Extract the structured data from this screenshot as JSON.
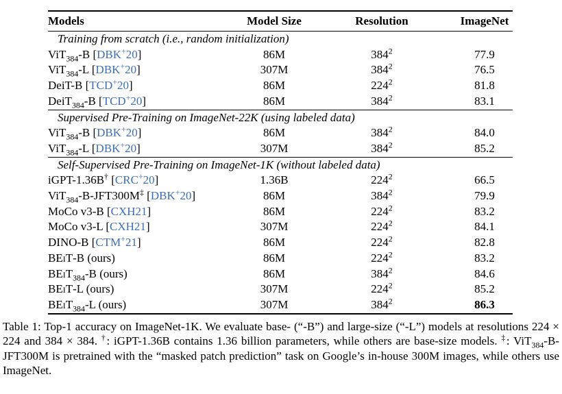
{
  "colors": {
    "text": "#000000",
    "rule": "#000000",
    "citation_link": "#3c6fb4"
  },
  "table": {
    "columns": [
      "Models",
      "Model Size",
      "Resolution",
      "ImageNet"
    ],
    "sections": [
      {
        "title": "Training from scratch (i.e., random initialization)",
        "rows": [
          {
            "model": "ViT_{384}-B",
            "cite": "DBK^{+}20",
            "size": "86M",
            "resolution": "384^{2}",
            "imagenet": "77.9",
            "bold": false
          },
          {
            "model": "ViT_{384}-L",
            "cite": "DBK^{+}20",
            "size": "307M",
            "resolution": "384^{2}",
            "imagenet": "76.5",
            "bold": false
          },
          {
            "model": "DeiT-B",
            "cite": "TCD^{+}20",
            "size": "86M",
            "resolution": "224^{2}",
            "imagenet": "81.8",
            "bold": false
          },
          {
            "model": "DeiT_{384}-B",
            "cite": "TCD^{+}20",
            "size": "86M",
            "resolution": "384^{2}",
            "imagenet": "83.1",
            "bold": false
          }
        ]
      },
      {
        "title": "Supervised Pre-Training on ImageNet-22K (using labeled data)",
        "rows": [
          {
            "model": "ViT_{384}-B",
            "cite": "DBK^{+}20",
            "size": "86M",
            "resolution": "384^{2}",
            "imagenet": "84.0",
            "bold": false
          },
          {
            "model": "ViT_{384}-L",
            "cite": "DBK^{+}20",
            "size": "307M",
            "resolution": "384^{2}",
            "imagenet": "85.2",
            "bold": false
          }
        ]
      },
      {
        "title": "Self-Supervised Pre-Training on ImageNet-1K (without labeled data)",
        "rows": [
          {
            "model": "iGPT-1.36B^{†}",
            "cite": "CRC^{+}20",
            "size": "1.36B",
            "resolution": "224^{2}",
            "imagenet": "66.5",
            "bold": false
          },
          {
            "model": "ViT_{384}-B-JFT300M^{‡}",
            "cite": "DBK^{+}20",
            "size": "86M",
            "resolution": "384^{2}",
            "imagenet": "79.9",
            "bold": false
          },
          {
            "model": "MoCo v3-B",
            "cite": "CXH21",
            "size": "86M",
            "resolution": "224^{2}",
            "imagenet": "83.2",
            "bold": false
          },
          {
            "model": "MoCo v3-L",
            "cite": "CXH21",
            "size": "307M",
            "resolution": "224^{2}",
            "imagenet": "84.1",
            "bold": false
          },
          {
            "model": "DINO-B",
            "cite": "CTM^{+}21",
            "size": "86M",
            "resolution": "224^{2}",
            "imagenet": "82.8",
            "bold": false
          },
          {
            "model": "~{BEiT}-B (ours)",
            "cite": null,
            "size": "86M",
            "resolution": "224^{2}",
            "imagenet": "83.2",
            "bold": false
          },
          {
            "model": "~{BEiT}_{384}-B (ours)",
            "cite": null,
            "size": "86M",
            "resolution": "384^{2}",
            "imagenet": "84.6",
            "bold": false
          },
          {
            "model": "~{BEiT}-L (ours)",
            "cite": null,
            "size": "307M",
            "resolution": "224^{2}",
            "imagenet": "85.2",
            "bold": false
          },
          {
            "model": "~{BEiT}_{384}-L (ours)",
            "cite": null,
            "size": "307M",
            "resolution": "384^{2}",
            "imagenet": "86.3",
            "bold": true
          }
        ]
      }
    ]
  },
  "caption": "Table 1: Top-1 accuracy on ImageNet-1K. We evaluate base- (“-B”) and large-size (“-L”) models at resolutions 224 × 224 and 384 × 384. ^{†}: iGPT-1.36B contains 1.36 billion parameters, while others are base-size models. ^{‡}: ViT_{384}-B-JFT300M is pretrained with the “masked patch prediction” task on Google’s in-house 300M images, while others use ImageNet."
}
